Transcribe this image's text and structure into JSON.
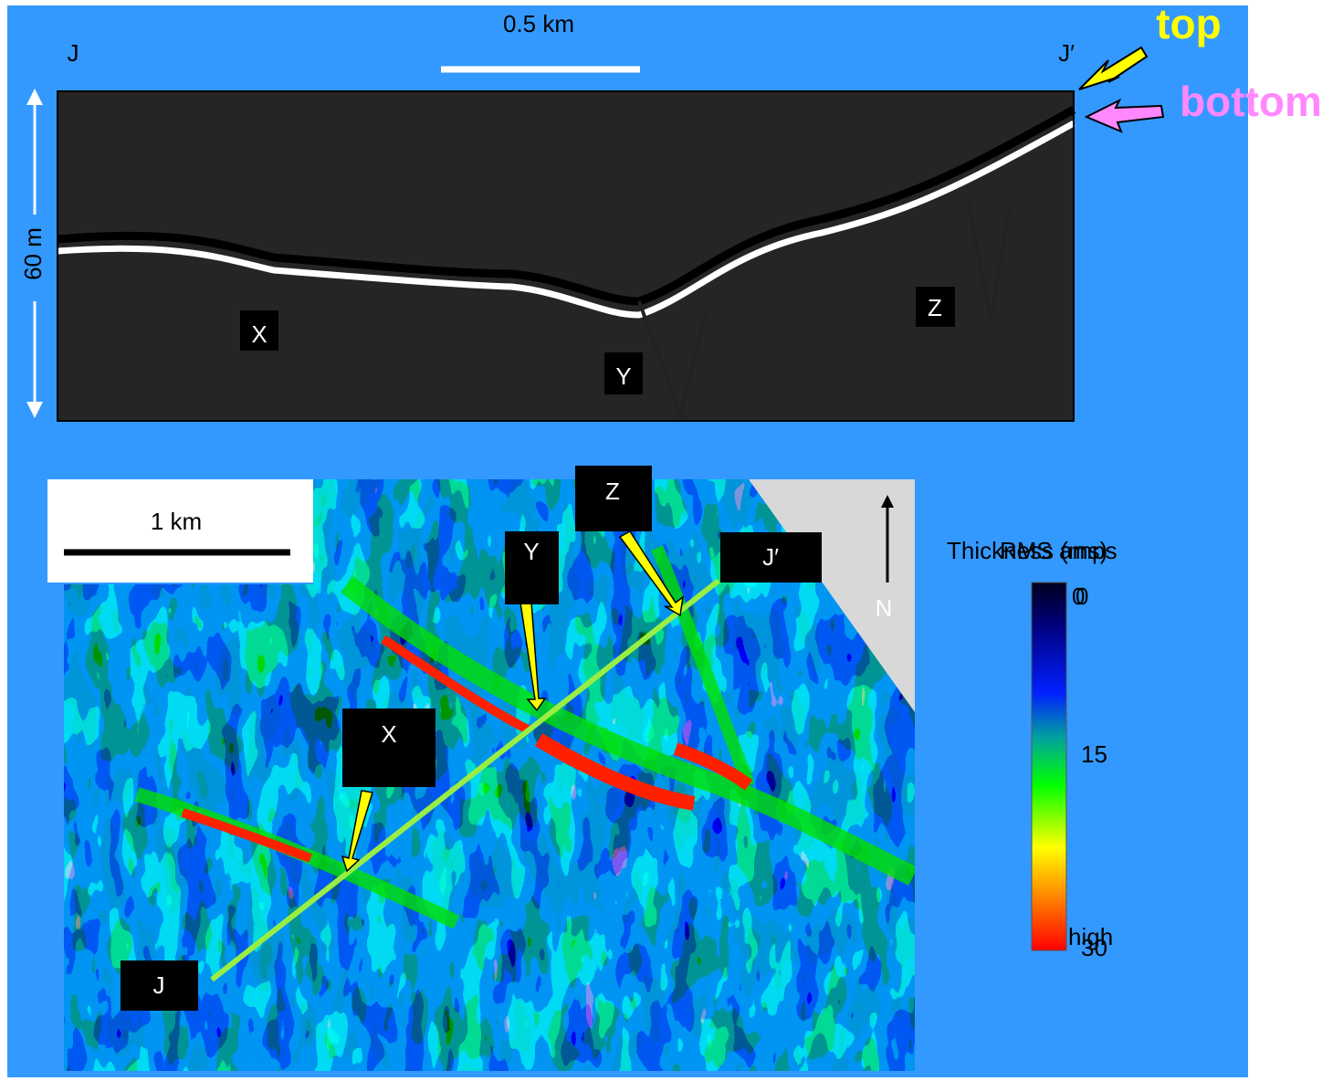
{
  "section": {
    "scale_label": "0.5 km",
    "left_label": "J",
    "right_label": "J′",
    "depth_label": "60 m",
    "features": [
      "X",
      "Y",
      "Z"
    ]
  },
  "horizons": {
    "top": "top",
    "bottom": "bottom"
  },
  "map": {
    "scale_label": "1 km",
    "north": "N",
    "features": {
      "z": "Z",
      "y": "Y",
      "j_prime": "J′",
      "x": "X",
      "j": "J"
    }
  },
  "colorbar": {
    "layers": [
      {
        "title": "Thickness (ms)",
        "labels": [
          "0",
          "15",
          "30"
        ]
      },
      {
        "title": "RMS amps",
        "labels": [
          "0",
          "high"
        ]
      }
    ]
  }
}
